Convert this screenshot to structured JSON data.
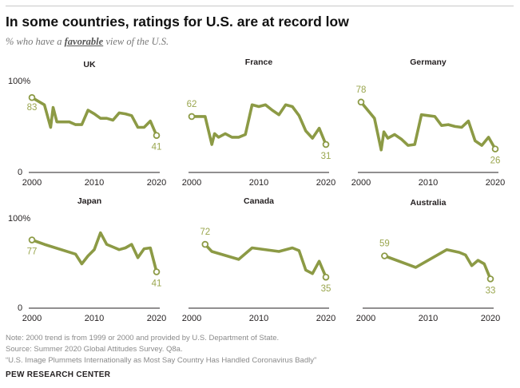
{
  "title": "In some countries, ratings for U.S. are at record low",
  "subtitle": {
    "prefix": "% who have a ",
    "emphasis": "favorable",
    "suffix": " view of the U.S."
  },
  "colors": {
    "line": "#8c9a45",
    "axis": "#231f20",
    "label": "#9aa64e",
    "gray": "#8a8a8a"
  },
  "chart_data": [
    {
      "type": "line",
      "title": "UK",
      "x_ticks": [
        "2000",
        "2010",
        "2020"
      ],
      "y_ticks": [
        "100%",
        "0"
      ],
      "xlim": [
        2000,
        2020
      ],
      "ylim": [
        0,
        100
      ],
      "series": [
        {
          "x": [
            2000,
            2002,
            2003,
            2003.4,
            2004,
            2005,
            2006,
            2007,
            2008,
            2009,
            2010,
            2011,
            2012,
            2013,
            2014,
            2015,
            2016,
            2017,
            2018,
            2019,
            2020
          ],
          "values": [
            83,
            75,
            50,
            72,
            56,
            56,
            56,
            53,
            53,
            69,
            65,
            60,
            60,
            58,
            66,
            65,
            63,
            50,
            50,
            57,
            41
          ]
        }
      ],
      "labels": [
        {
          "text": "83",
          "x": 2000,
          "y": 83
        },
        {
          "text": "41",
          "x": 2020,
          "y": 41
        }
      ]
    },
    {
      "type": "line",
      "title": "France",
      "x_ticks": [
        "2000",
        "2010",
        "2020"
      ],
      "y_ticks": [],
      "xlim": [
        2000,
        2020
      ],
      "ylim": [
        0,
        100
      ],
      "series": [
        {
          "x": [
            2000,
            2002,
            2003,
            2003.4,
            2004,
            2005,
            2006,
            2007,
            2008,
            2009,
            2010,
            2011,
            2012,
            2013,
            2014,
            2015,
            2016,
            2017,
            2018,
            2019,
            2020
          ],
          "values": [
            62,
            62,
            31,
            43,
            39,
            43,
            39,
            39,
            42,
            75,
            73,
            75,
            69,
            64,
            75,
            73,
            63,
            46,
            38,
            49,
            31
          ]
        }
      ],
      "labels": [
        {
          "text": "62",
          "x": 2000,
          "y": 62
        },
        {
          "text": "31",
          "x": 2020,
          "y": 31
        }
      ]
    },
    {
      "type": "line",
      "title": "Germany",
      "x_ticks": [
        "2000",
        "2010",
        "2020"
      ],
      "y_ticks": [],
      "xlim": [
        2000,
        2020
      ],
      "ylim": [
        0,
        100
      ],
      "series": [
        {
          "x": [
            2000,
            2002,
            2003,
            2003.4,
            2004,
            2005,
            2006,
            2007,
            2008,
            2009,
            2010,
            2011,
            2012,
            2013,
            2014,
            2015,
            2016,
            2017,
            2018,
            2019,
            2020
          ],
          "values": [
            78,
            60,
            25,
            45,
            38,
            42,
            37,
            30,
            31,
            64,
            63,
            62,
            52,
            53,
            51,
            50,
            57,
            35,
            30,
            39,
            26
          ]
        }
      ],
      "labels": [
        {
          "text": "78",
          "x": 2000,
          "y": 78
        },
        {
          "text": "26",
          "x": 2020,
          "y": 26
        }
      ]
    },
    {
      "type": "line",
      "title": "Japan",
      "x_ticks": [
        "2000",
        "2010",
        "2020"
      ],
      "y_ticks": [
        "100%",
        "0"
      ],
      "xlim": [
        2000,
        2020
      ],
      "ylim": [
        0,
        100
      ],
      "series": [
        {
          "x": [
            2000,
            2002,
            2007,
            2008,
            2009,
            2010,
            2011,
            2012,
            2013,
            2014,
            2015,
            2016,
            2017,
            2018,
            2019,
            2020
          ],
          "values": [
            77,
            72,
            61,
            50,
            59,
            66,
            85,
            72,
            69,
            66,
            68,
            72,
            57,
            67,
            68,
            41
          ]
        }
      ],
      "labels": [
        {
          "text": "77",
          "x": 2000,
          "y": 77
        },
        {
          "text": "41",
          "x": 2020,
          "y": 41
        }
      ]
    },
    {
      "type": "line",
      "title": "Canada",
      "x_ticks": [
        "2000",
        "2010",
        "2020"
      ],
      "y_ticks": [],
      "xlim": [
        2000,
        2020
      ],
      "ylim": [
        0,
        100
      ],
      "series": [
        {
          "x": [
            2002,
            2003,
            2007,
            2009,
            2013,
            2015,
            2016,
            2017,
            2018,
            2019,
            2020
          ],
          "values": [
            72,
            64,
            55,
            68,
            64,
            68,
            65,
            43,
            39,
            53,
            35
          ]
        }
      ],
      "labels": [
        {
          "text": "72",
          "x": 2002,
          "y": 72
        },
        {
          "text": "35",
          "x": 2020,
          "y": 35
        }
      ]
    },
    {
      "type": "line",
      "title": "Australia",
      "x_ticks": [
        "2000",
        "2010",
        "2020"
      ],
      "y_ticks": [],
      "xlim": [
        2000,
        2020
      ],
      "ylim": [
        0,
        100
      ],
      "series": [
        {
          "x": [
            2003,
            2008,
            2013,
            2015,
            2016,
            2017,
            2018,
            2019,
            2020
          ],
          "values": [
            59,
            46,
            66,
            63,
            60,
            48,
            54,
            50,
            33
          ]
        }
      ],
      "labels": [
        {
          "text": "59",
          "x": 2003,
          "y": 59
        },
        {
          "text": "33",
          "x": 2020,
          "y": 33
        }
      ]
    }
  ],
  "footer": {
    "note": "Note: 2000 trend is from 1999 or 2000 and provided by U.S. Department of State.",
    "source": "Source: Summer 2020 Global Attitudes Survey. Q8a.",
    "report": "“U.S. Image Plummets Internationally as Most Say Country Has Handled Coronavirus Badly”",
    "org": "PEW RESEARCH CENTER"
  }
}
